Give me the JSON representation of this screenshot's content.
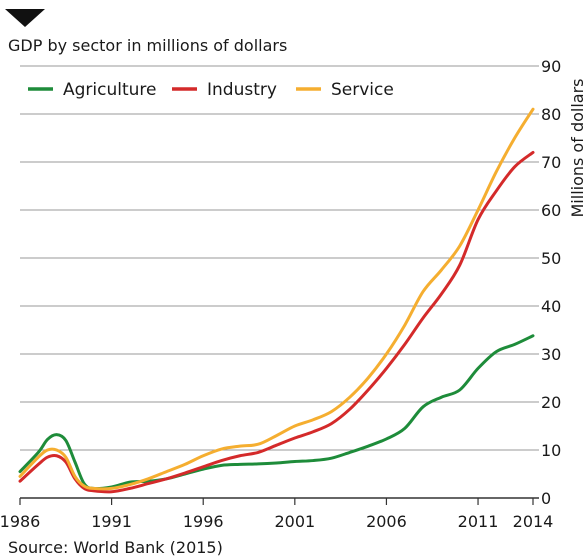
{
  "title": "GDP by sector in millions of dollars",
  "source": "Source: World Bank (2015)",
  "colors": {
    "marker": "#111111",
    "grid": "#9a9a9a",
    "axis": "#333333",
    "text": "#1a1a1a"
  },
  "chart_data": {
    "type": "line",
    "ylabel": "Millions of dollars",
    "xlabel": "",
    "xlim": [
      1986,
      2014
    ],
    "ylim": [
      0,
      90
    ],
    "x_ticks": [
      1986,
      1991,
      1996,
      2001,
      2006,
      2011,
      2014
    ],
    "y_ticks": [
      0,
      10,
      20,
      30,
      40,
      50,
      60,
      70,
      80,
      90
    ],
    "grid": true,
    "legend_position": "top-left",
    "y_axis_side": "right",
    "series": [
      {
        "name": "Agriculture",
        "color": "#1e8c3a",
        "x": [
          1986,
          1987,
          1987.5,
          1988,
          1988.5,
          1989,
          1989.5,
          1990,
          1991,
          1992,
          1993,
          1994,
          1995,
          1996,
          1997,
          1998,
          1999,
          2000,
          2001,
          2002,
          2003,
          2004,
          2005,
          2006,
          2007,
          2008,
          2009,
          2010,
          2011,
          2012,
          2013,
          2014
        ],
        "y": [
          5.5,
          9.5,
          12.2,
          13.2,
          12.0,
          7.5,
          3.0,
          2.0,
          2.3,
          3.3,
          3.5,
          4.0,
          5.0,
          6.0,
          6.8,
          7.0,
          7.1,
          7.3,
          7.6,
          7.8,
          8.3,
          9.5,
          10.8,
          12.3,
          14.5,
          19.0,
          21.0,
          22.5,
          27.0,
          30.5,
          32.0,
          33.8
        ]
      },
      {
        "name": "Industry",
        "color": "#d42a2a",
        "x": [
          1986,
          1987,
          1987.5,
          1988,
          1988.5,
          1989,
          1989.5,
          1990,
          1991,
          1992,
          1993,
          1994,
          1995,
          1996,
          1997,
          1998,
          1999,
          2000,
          2001,
          2002,
          2003,
          2004,
          2005,
          2006,
          2007,
          2008,
          2009,
          2010,
          2011,
          2012,
          2013,
          2014
        ],
        "y": [
          3.5,
          7.0,
          8.5,
          8.8,
          7.5,
          4.0,
          2.0,
          1.5,
          1.3,
          2.0,
          3.0,
          4.0,
          5.2,
          6.5,
          7.8,
          8.8,
          9.5,
          11.0,
          12.5,
          13.8,
          15.5,
          18.5,
          22.5,
          27.0,
          32.0,
          37.5,
          42.5,
          48.5,
          58.0,
          64.0,
          69.0,
          72.0
        ]
      },
      {
        "name": "Service",
        "color": "#f5ae30",
        "x": [
          1986,
          1987,
          1987.5,
          1988,
          1988.5,
          1989,
          1989.5,
          1990,
          1991,
          1992,
          1993,
          1994,
          1995,
          1996,
          1997,
          1998,
          1999,
          2000,
          2001,
          2002,
          2003,
          2004,
          2005,
          2006,
          2007,
          2008,
          2009,
          2010,
          2011,
          2012,
          2013,
          2014
        ],
        "y": [
          4.5,
          8.5,
          10.0,
          10.0,
          8.5,
          4.5,
          2.5,
          2.0,
          2.0,
          2.8,
          4.0,
          5.5,
          7.0,
          8.8,
          10.2,
          10.8,
          11.2,
          13.0,
          15.0,
          16.3,
          18.0,
          21.0,
          25.0,
          30.0,
          36.0,
          43.0,
          47.5,
          52.5,
          60.0,
          68.0,
          75.0,
          81.0
        ]
      }
    ]
  }
}
